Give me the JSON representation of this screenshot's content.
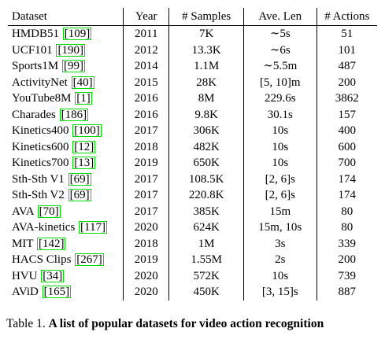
{
  "table": {
    "headers": {
      "dataset": "Dataset",
      "year": "Year",
      "samples": "# Samples",
      "ave_len": "Ave. Len",
      "actions": "# Actions"
    },
    "rows": [
      {
        "name": "HMDB51",
        "cite": "109",
        "year": "2011",
        "samples": "7K",
        "ave_len": "∼5s",
        "len_italic": false,
        "actions": "51"
      },
      {
        "name": "UCF101",
        "cite": "190",
        "year": "2012",
        "samples": "13.3K",
        "ave_len": "∼6s",
        "len_italic": false,
        "actions": "101"
      },
      {
        "name": "Sports1M",
        "cite": "99",
        "year": "2014",
        "samples": "1.1M",
        "ave_len": "∼5.5m",
        "len_italic": false,
        "actions": "487"
      },
      {
        "name": "ActivityNet",
        "cite": "40",
        "year": "2015",
        "samples": "28K",
        "ave_len": "[5, 10]m",
        "len_italic": false,
        "actions": "200"
      },
      {
        "name": "YouTube8M",
        "cite": "1",
        "year": "2016",
        "samples": "8M",
        "ave_len": "229.6s",
        "len_italic": false,
        "actions": "3862"
      },
      {
        "name": "Charades",
        "cite": "186",
        "year": "2016",
        "samples": "9.8K",
        "ave_len": "30.1s",
        "len_italic": false,
        "actions": "157"
      },
      {
        "name": "Kinetics400",
        "cite": "100",
        "year": "2017",
        "samples": "306K",
        "ave_len": "10s",
        "len_italic": false,
        "actions": "400"
      },
      {
        "name": "Kinetics600",
        "cite": "12",
        "year": "2018",
        "samples": "482K",
        "ave_len": "10s",
        "len_italic": false,
        "actions": "600"
      },
      {
        "name": "Kinetics700",
        "cite": "13",
        "year": "2019",
        "samples": "650K",
        "ave_len": "10s",
        "len_italic": false,
        "actions": "700"
      },
      {
        "name": "Sth-Sth V1",
        "cite": "69",
        "year": "2017",
        "samples": "108.5K",
        "ave_len": "[2, 6]s",
        "len_italic": false,
        "actions": "174"
      },
      {
        "name": "Sth-Sth V2",
        "cite": "69",
        "year": "2017",
        "samples": "220.8K",
        "ave_len": "[2, 6]s",
        "len_italic": false,
        "actions": "174"
      },
      {
        "name": "AVA",
        "cite": "70",
        "year": "2017",
        "samples": "385K",
        "ave_len": "15m",
        "len_italic": false,
        "actions": "80"
      },
      {
        "name": "AVA-kinetics",
        "cite": "117",
        "year": "2020",
        "samples": "624K",
        "ave_len": "15m, 10s",
        "len_italic": false,
        "actions": "80"
      },
      {
        "name": "MIT",
        "cite": "142",
        "year": "2018",
        "samples": "1M",
        "ave_len": "3s",
        "len_italic": false,
        "actions": "339"
      },
      {
        "name": "HACS Clips",
        "cite": "267",
        "year": "2019",
        "samples": "1.55M",
        "ave_len": "2s",
        "len_italic": false,
        "actions": "200"
      },
      {
        "name": "HVU",
        "cite": "34",
        "year": "2020",
        "samples": "572K",
        "ave_len": "10s",
        "len_italic": false,
        "actions": "739"
      },
      {
        "name": "AViD",
        "cite": "165",
        "year": "2020",
        "samples": "450K",
        "ave_len": "[3, 15]s",
        "len_italic": false,
        "actions": "887"
      }
    ]
  },
  "caption": {
    "prefix": "Table 1. ",
    "bold": "A list of popular datasets for video action recognition"
  }
}
